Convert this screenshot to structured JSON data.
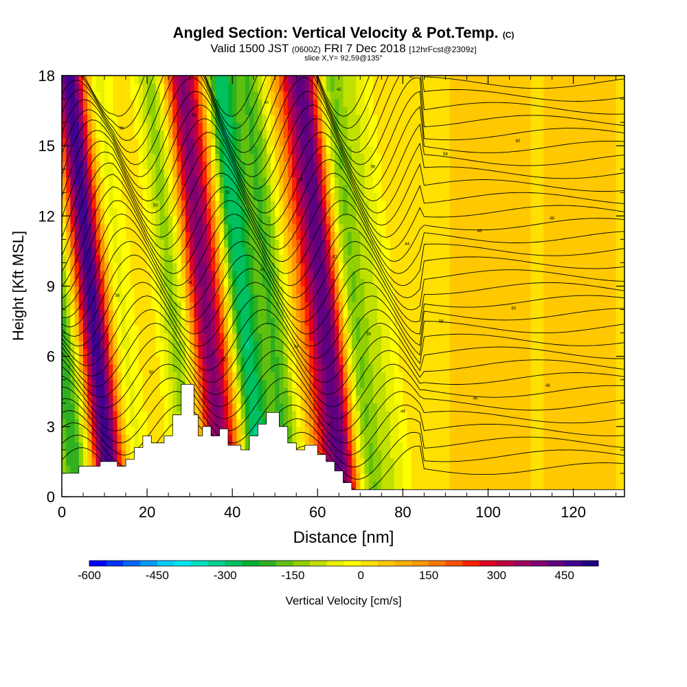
{
  "header": {
    "title": "Angled Section: Vertical Velocity & Pot.Temp.",
    "title_unit": "(C)",
    "valid_prefix": "Valid 1500 JST",
    "valid_utc": "(0600Z)",
    "valid_date": "FRI 7 Dec 2018",
    "forecast": "[12hrFcst@2309z]",
    "slice": "slice X,Y= 92,59@135°"
  },
  "chart_data": {
    "type": "heatmap",
    "xlabel": "Distance [nm]",
    "ylabel": "Height [Kft MSL]",
    "xlim": [
      0,
      132
    ],
    "ylim": [
      0,
      18
    ],
    "xticks": [
      0,
      20,
      40,
      60,
      80,
      100,
      120
    ],
    "yticks": [
      0,
      3,
      6,
      9,
      12,
      15,
      18
    ],
    "colorbar": {
      "label": "Vertical Velocity [cm/s]",
      "min": -600,
      "max": 525,
      "step": 37.5,
      "tick_labels": [
        "-600",
        "-450",
        "-300",
        "-150",
        "0",
        "150",
        "300",
        "450"
      ],
      "colors": [
        "#0000ff",
        "#0033ff",
        "#0066ff",
        "#0099ff",
        "#00ccff",
        "#00e6f0",
        "#00e0c0",
        "#00d090",
        "#00c060",
        "#00b030",
        "#30b020",
        "#60c010",
        "#90d000",
        "#c0e000",
        "#e8f000",
        "#ffff00",
        "#ffe000",
        "#ffc800",
        "#ffb000",
        "#ff9800",
        "#ff7800",
        "#ff5000",
        "#ff2000",
        "#e00020",
        "#c00040",
        "#a00060",
        "#800070",
        "#600080",
        "#400090",
        "#200080"
      ]
    },
    "velocity_bands": [
      {
        "x": 2,
        "v": -250
      },
      {
        "x": 10,
        "v": 450
      },
      {
        "x": 16,
        "v": -90
      },
      {
        "x": 29,
        "v": -160
      },
      {
        "x": 36,
        "v": 320
      },
      {
        "x": 40,
        "v": 120
      },
      {
        "x": 45,
        "v": -340
      },
      {
        "x": 52,
        "v": -210
      },
      {
        "x": 61,
        "v": 160
      },
      {
        "x": 65,
        "v": 360
      },
      {
        "x": 71,
        "v": -190
      },
      {
        "x": 77,
        "v": -90
      },
      {
        "x": 100,
        "v": 40
      },
      {
        "x": 122,
        "v": 30
      }
    ],
    "terrain": [
      [
        0,
        1
      ],
      [
        4,
        1
      ],
      [
        4,
        1.3
      ],
      [
        9,
        1.3
      ],
      [
        9,
        1.5
      ],
      [
        13,
        1.5
      ],
      [
        13,
        1.3
      ],
      [
        15,
        1.3
      ],
      [
        15,
        1.6
      ],
      [
        17,
        1.6
      ],
      [
        17,
        2.1
      ],
      [
        19,
        2.1
      ],
      [
        19,
        2.6
      ],
      [
        21,
        2.6
      ],
      [
        21,
        2.3
      ],
      [
        24,
        2.3
      ],
      [
        24,
        2.6
      ],
      [
        26,
        2.6
      ],
      [
        26,
        3.5
      ],
      [
        28,
        3.5
      ],
      [
        28,
        4.8
      ],
      [
        31,
        4.8
      ],
      [
        31,
        3.5
      ],
      [
        32,
        3.5
      ],
      [
        32,
        2.6
      ],
      [
        33,
        2.6
      ],
      [
        33,
        3.0
      ],
      [
        35,
        3.0
      ],
      [
        35,
        2.6
      ],
      [
        37,
        2.6
      ],
      [
        37,
        2.9
      ],
      [
        39,
        2.9
      ],
      [
        39,
        2.2
      ],
      [
        42,
        2.2
      ],
      [
        42,
        2.0
      ],
      [
        44,
        2.0
      ],
      [
        44,
        2.6
      ],
      [
        46,
        2.6
      ],
      [
        46,
        3.1
      ],
      [
        48,
        3.1
      ],
      [
        48,
        3.6
      ],
      [
        51,
        3.6
      ],
      [
        51,
        3.0
      ],
      [
        53,
        3.0
      ],
      [
        53,
        2.3
      ],
      [
        55,
        2.3
      ],
      [
        55,
        2.0
      ],
      [
        57,
        2.0
      ],
      [
        57,
        2.2
      ],
      [
        60,
        2.2
      ],
      [
        60,
        1.8
      ],
      [
        62,
        1.8
      ],
      [
        62,
        1.5
      ],
      [
        64,
        1.5
      ],
      [
        64,
        1.1
      ],
      [
        66,
        1.1
      ],
      [
        66,
        0.6
      ],
      [
        68,
        0.6
      ],
      [
        68,
        0.3
      ],
      [
        132,
        0.3
      ]
    ],
    "isentropes": {
      "count": 32,
      "labels": [
        "36",
        "38",
        "40",
        "42",
        "44",
        "46",
        "48",
        "50",
        "52",
        "54",
        "56",
        "58",
        "60"
      ]
    }
  }
}
